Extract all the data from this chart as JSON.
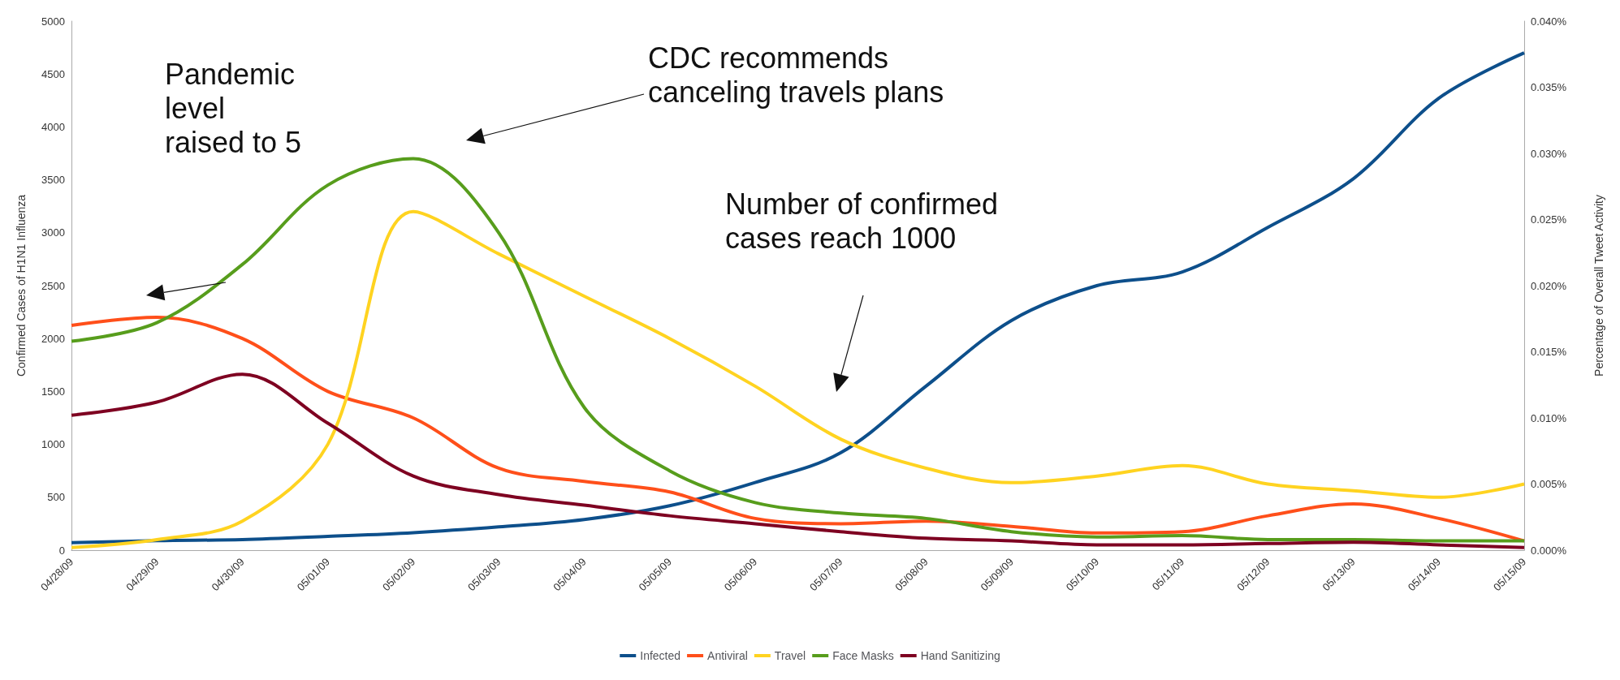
{
  "chart_data": {
    "type": "line",
    "categories": [
      "04/28/09",
      "04/29/09",
      "04/30/09",
      "05/01/09",
      "05/02/09",
      "05/03/09",
      "05/04/09",
      "05/05/09",
      "05/06/09",
      "05/07/09",
      "05/08/09",
      "05/09/09",
      "05/10/09",
      "05/11/09",
      "05/12/09",
      "05/13/09",
      "05/14/09",
      "05/15/09"
    ],
    "series": [
      {
        "name": "Infected",
        "color": "#0d4f8b",
        "values": [
          70,
          90,
          100,
          130,
          165,
          220,
          290,
          420,
          640,
          920,
          1550,
          2170,
          2500,
          2630,
          3050,
          3510,
          4270,
          4700
        ]
      },
      {
        "name": "Antiviral",
        "color": "#ff4f1a",
        "axis": "y2",
        "values": [
          0.017,
          0.0176,
          0.016,
          0.012,
          0.01,
          0.0062,
          0.0052,
          0.0044,
          0.0024,
          0.002,
          0.0022,
          0.0018,
          0.0013,
          0.0014,
          0.0026,
          0.0035,
          0.0024,
          0.0007
        ]
      },
      {
        "name": "Travel",
        "color": "#ffd320",
        "axis": "y2",
        "values": [
          0.0002,
          0.0008,
          0.0022,
          0.008,
          0.0256,
          0.0224,
          0.0192,
          0.016,
          0.0124,
          0.0084,
          0.0062,
          0.0051,
          0.0056,
          0.0064,
          0.005,
          0.0045,
          0.004,
          0.005
        ]
      },
      {
        "name": "Face Masks",
        "color": "#579d1c",
        "axis": "y2",
        "values": [
          0.0158,
          0.0172,
          0.0216,
          0.0276,
          0.0296,
          0.024,
          0.0108,
          0.006,
          0.0036,
          0.0028,
          0.0024,
          0.0014,
          0.001,
          0.0011,
          0.0008,
          0.0008,
          0.0007,
          0.0007
        ]
      },
      {
        "name": "Hand Sanitizing",
        "color": "#7e0021",
        "axis": "y2",
        "values": [
          0.0102,
          0.0112,
          0.0133,
          0.0096,
          0.0056,
          0.0042,
          0.0034,
          0.0026,
          0.002,
          0.0014,
          0.0009,
          0.0007,
          0.0004,
          0.0004,
          0.0005,
          0.0006,
          0.0004,
          0.0002
        ]
      }
    ],
    "ylabel": "Confirmed Cases of H1N1 Influenza",
    "y2label": "Percentage of Overall Tweet Activity",
    "ylim": [
      0,
      5000
    ],
    "yticks": [
      0,
      500,
      1000,
      1500,
      2000,
      2500,
      3000,
      3500,
      4000,
      4500,
      5000
    ],
    "y2lim": [
      0,
      0.04
    ],
    "y2ticks": [
      {
        "value": 0,
        "label": "0.000%"
      },
      {
        "value": 0.005,
        "label": "0.005%"
      },
      {
        "value": 0.01,
        "label": "0.010%"
      },
      {
        "value": 0.015,
        "label": "0.015%"
      },
      {
        "value": 0.02,
        "label": "0.020%"
      },
      {
        "value": 0.025,
        "label": "0.025%"
      },
      {
        "value": 0.03,
        "label": "0.030%"
      },
      {
        "value": 0.035,
        "label": "0.035%"
      },
      {
        "value": 0.04,
        "label": "0.040%"
      }
    ],
    "annotations": [
      "Pandemic\nlevel\nraised to 5",
      "CDC recommends\ncanceling travels plans",
      "Number of confirmed\ncases reach 1000"
    ],
    "legend": "bottom",
    "marker": "none",
    "line_style": "solid",
    "grid": false
  }
}
